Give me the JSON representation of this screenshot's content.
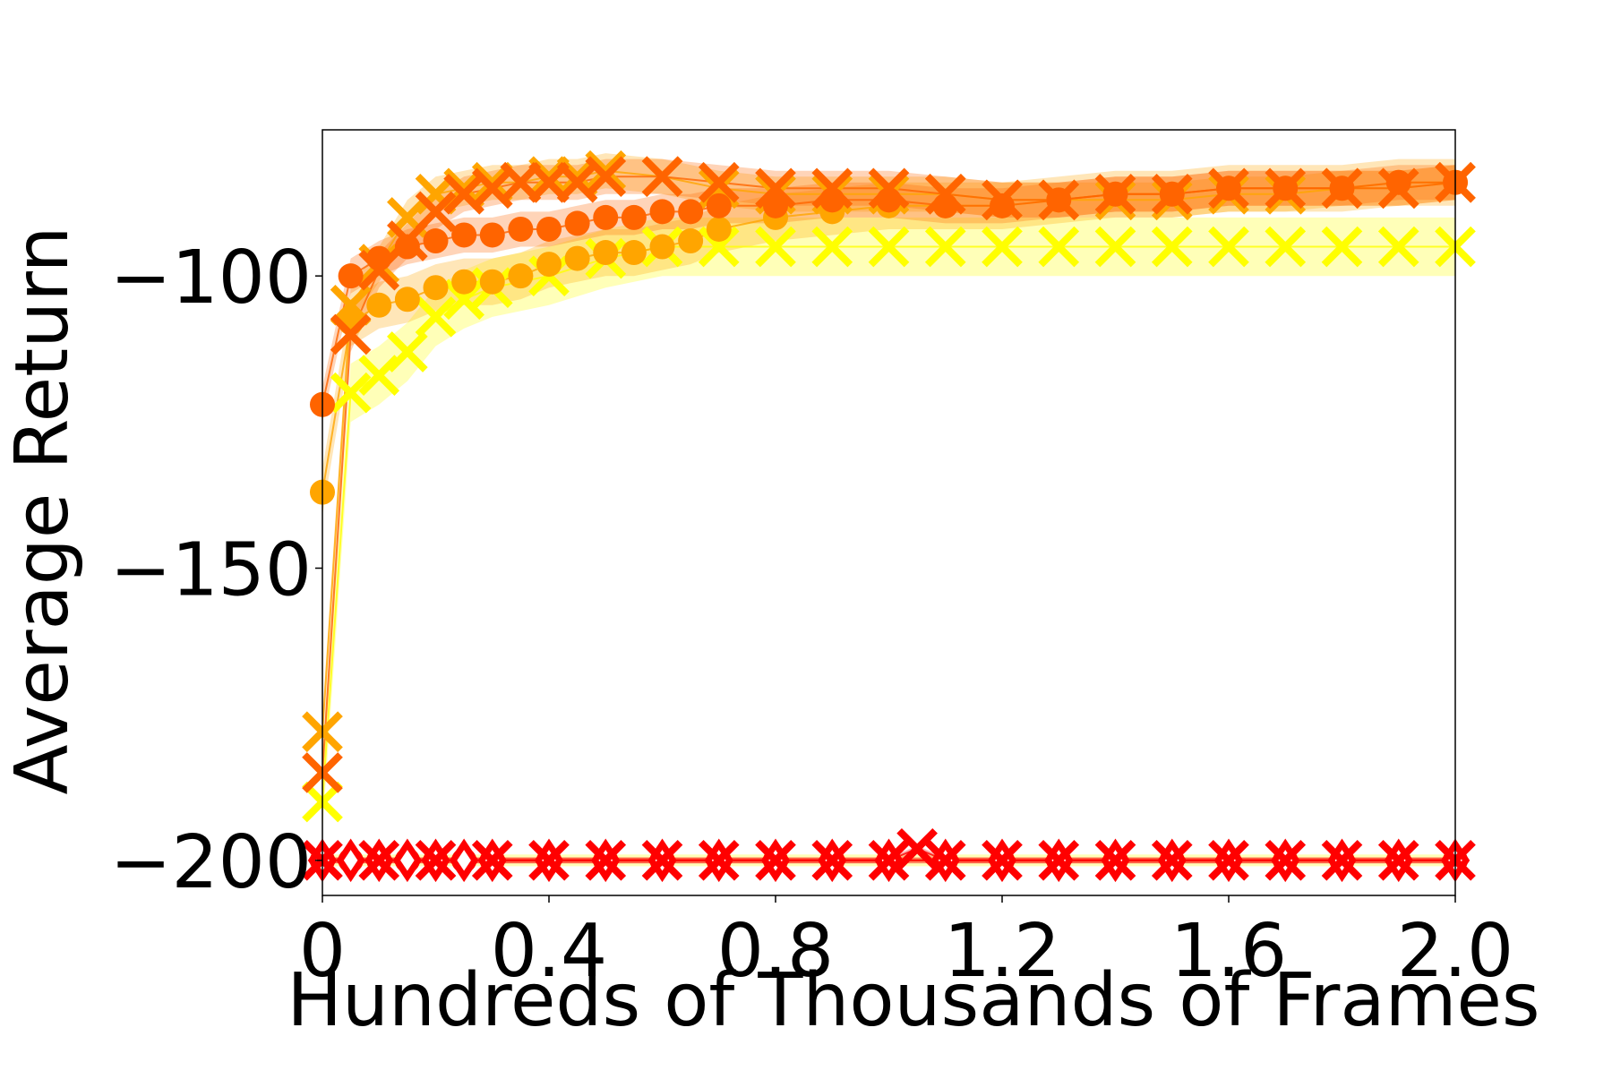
{
  "chart_data": {
    "type": "line",
    "title": "",
    "xlabel": "Hundreds of Thousands of Frames",
    "ylabel": "Average Return",
    "xlim": [
      0,
      2.0
    ],
    "ylim": [
      -206,
      -75
    ],
    "x_ticks": [
      0,
      0.4,
      0.8,
      1.2,
      1.6,
      2.0
    ],
    "x_tick_labels": [
      "0",
      "0.4",
      "0.8",
      "1.2",
      "1.6",
      "2.0"
    ],
    "y_ticks": [
      -100,
      -150,
      -200
    ],
    "y_tick_labels": [
      "−100",
      "−150",
      "−200"
    ],
    "grid": false,
    "legend": "none",
    "series": [
      {
        "color": "#FFFF00",
        "marker": "x",
        "x": [
          0.0,
          0.05,
          0.1,
          0.15,
          0.2,
          0.25,
          0.3,
          0.4,
          0.5,
          0.6,
          0.7,
          0.8,
          0.9,
          1.0,
          1.1,
          1.2,
          1.3,
          1.4,
          1.5,
          1.6,
          1.7,
          1.8,
          1.9,
          2.0
        ],
        "y": [
          -190,
          -120,
          -117,
          -113,
          -107,
          -104,
          -102,
          -100,
          -97,
          -95,
          -95,
          -95,
          -95,
          -95,
          -95,
          -95,
          -95,
          -95,
          -95,
          -95,
          -95,
          -95,
          -95,
          -95
        ],
        "band": 5
      },
      {
        "color": "#FFFF00",
        "marker": "o",
        "x": [
          0.0,
          0.05,
          0.1,
          0.15,
          0.2,
          0.25,
          0.3,
          0.4,
          0.5,
          0.6,
          0.7,
          0.8,
          0.9,
          1.0,
          1.1,
          1.2,
          1.3,
          1.4,
          1.5,
          1.6,
          1.7,
          1.8,
          1.9,
          2.0
        ],
        "y": [
          -200,
          -200,
          -200,
          -200,
          -200,
          -200,
          -200,
          -200,
          -200,
          -200,
          -200,
          -200,
          -200,
          -200,
          -200,
          -200,
          -200,
          -200,
          -200,
          -200,
          -200,
          -200,
          -200,
          -200
        ],
        "band": 1
      },
      {
        "color": "#FFA500",
        "marker": "o",
        "x": [
          0.0,
          0.05,
          0.1,
          0.15,
          0.2,
          0.25,
          0.3,
          0.35,
          0.4,
          0.45,
          0.5,
          0.55,
          0.6,
          0.65,
          0.7,
          0.8,
          0.9,
          1.0,
          1.1,
          1.2,
          1.3,
          1.4,
          1.5,
          1.6,
          1.7,
          1.8,
          1.9,
          2.0
        ],
        "y": [
          -137,
          -108,
          -105,
          -104,
          -102,
          -101,
          -101,
          -100,
          -98,
          -97,
          -96,
          -96,
          -95,
          -94,
          -92,
          -90,
          -89,
          -88,
          -88,
          -88,
          -87,
          -86,
          -86,
          -85,
          -85,
          -85,
          -84,
          -84
        ],
        "band": 4
      },
      {
        "color": "#FFA500",
        "marker": "x",
        "x": [
          0.0,
          0.05,
          0.1,
          0.15,
          0.2,
          0.25,
          0.3,
          0.35,
          0.4,
          0.45,
          0.5,
          0.6,
          0.7,
          0.8,
          0.9,
          1.0,
          1.1,
          1.2,
          1.3,
          1.4,
          1.5,
          1.6,
          1.7,
          1.8,
          1.9,
          2.0
        ],
        "y": [
          -178,
          -105,
          -98,
          -90,
          -86,
          -85,
          -84,
          -84,
          -83,
          -83,
          -82,
          -83,
          -85,
          -86,
          -86,
          -86,
          -86,
          -87,
          -87,
          -87,
          -87,
          -86,
          -86,
          -85,
          -85,
          -84
        ],
        "band": 3
      },
      {
        "color": "#FF6400",
        "marker": "o",
        "x": [
          0.0,
          0.05,
          0.1,
          0.15,
          0.2,
          0.25,
          0.3,
          0.35,
          0.4,
          0.45,
          0.5,
          0.55,
          0.6,
          0.65,
          0.7,
          0.8,
          0.9,
          1.0,
          1.1,
          1.2,
          1.3,
          1.4,
          1.5,
          1.6,
          1.7,
          1.8,
          1.9,
          2.0
        ],
        "y": [
          -122,
          -100,
          -97,
          -95,
          -94,
          -93,
          -93,
          -92,
          -92,
          -91,
          -90,
          -90,
          -89,
          -89,
          -88,
          -88,
          -87,
          -87,
          -88,
          -88,
          -87,
          -86,
          -86,
          -85,
          -85,
          -85,
          -84,
          -84
        ],
        "band": 3
      },
      {
        "color": "#FF6400",
        "marker": "x",
        "x": [
          0.0,
          0.05,
          0.1,
          0.15,
          0.2,
          0.25,
          0.3,
          0.35,
          0.4,
          0.45,
          0.5,
          0.6,
          0.7,
          0.8,
          0.9,
          1.0,
          1.1,
          1.2,
          1.3,
          1.4,
          1.5,
          1.6,
          1.7,
          1.8,
          1.9,
          2.0
        ],
        "y": [
          -185,
          -110,
          -99,
          -94,
          -89,
          -86,
          -85,
          -84,
          -84,
          -84,
          -83,
          -83,
          -84,
          -85,
          -85,
          -85,
          -86,
          -87,
          -87,
          -86,
          -86,
          -85,
          -85,
          -85,
          -85,
          -84
        ],
        "band": 3
      },
      {
        "color": "#FF0000",
        "marker": "o",
        "x": [
          0.0,
          0.05,
          0.1,
          0.15,
          0.2,
          0.25,
          0.3,
          0.4,
          0.5,
          0.6,
          0.7,
          0.8,
          0.9,
          1.0,
          1.1,
          1.2,
          1.3,
          1.4,
          1.5,
          1.6,
          1.7,
          1.8,
          1.9,
          2.0
        ],
        "y": [
          -200,
          -200,
          -200,
          -200,
          -200,
          -200,
          -200,
          -200,
          -200,
          -200,
          -200,
          -200,
          -200,
          -200,
          -200,
          -200,
          -200,
          -200,
          -200,
          -200,
          -200,
          -200,
          -200,
          -200
        ],
        "band": 0.5
      },
      {
        "color": "#FF0000",
        "marker": "diamond",
        "x": [
          0.0,
          0.05,
          0.1,
          0.15,
          0.2,
          0.25,
          0.3,
          0.4,
          0.5,
          0.6,
          0.7,
          0.8,
          0.9,
          1.0,
          1.1,
          1.2,
          1.3,
          1.4,
          1.5,
          1.6,
          1.7,
          1.8,
          1.9,
          2.0
        ],
        "y": [
          -200,
          -200,
          -200,
          -200,
          -200,
          -200,
          -200,
          -200,
          -200,
          -200,
          -200,
          -200,
          -200,
          -200,
          -200,
          -200,
          -200,
          -200,
          -200,
          -200,
          -200,
          -200,
          -200,
          -200
        ],
        "band": 0.5
      },
      {
        "color": "#FF0000",
        "marker": "x",
        "x": [
          0.0,
          0.1,
          0.2,
          0.3,
          0.4,
          0.5,
          0.6,
          0.7,
          0.8,
          0.9,
          1.0,
          1.05,
          1.1,
          1.2,
          1.3,
          1.4,
          1.5,
          1.6,
          1.7,
          1.8,
          1.9,
          2.0
        ],
        "y": [
          -200,
          -200,
          -200,
          -200,
          -200,
          -200,
          -200,
          -200,
          -200,
          -200,
          -200,
          -198,
          -200,
          -200,
          -200,
          -200,
          -200,
          -200,
          -200,
          -200,
          -200,
          -200
        ],
        "band": 0.5
      }
    ]
  }
}
